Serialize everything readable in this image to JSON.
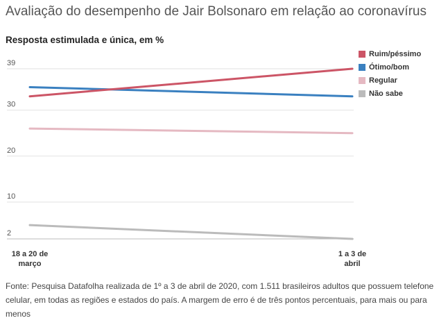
{
  "chart_data": {
    "type": "line",
    "title": "Avaliação do desempenho de Jair Bolsonaro em relação ao coronavírus",
    "subtitle": "Resposta estimulada e única, em %",
    "x_categories": [
      [
        "18 a 20 de",
        "março"
      ],
      [
        "1 a 3 de",
        "abril"
      ]
    ],
    "y_ticks": [
      2,
      10,
      20,
      30,
      39
    ],
    "ylim": [
      2,
      39
    ],
    "grid": "horizontal",
    "legend_position": "top-right",
    "series": [
      {
        "name": "Ruim/péssimo",
        "color": "#cc5566",
        "values": [
          33,
          39
        ]
      },
      {
        "name": "Ótimo/bom",
        "color": "#3a80c0",
        "values": [
          35,
          33
        ]
      },
      {
        "name": "Regular",
        "color": "#e5b9c2",
        "values": [
          26,
          25
        ]
      },
      {
        "name": "Não sabe",
        "color": "#bbbbbb",
        "values": [
          5,
          2
        ]
      }
    ]
  },
  "source": "Fonte: Pesquisa Datafolha realizada de 1º a 3 de abril de 2020, com 1.511 brasileiros adultos que possuem telefone celular, em todas as regiões e estados do país. A margem de erro é de três pontos percentuais, para mais ou para menos"
}
